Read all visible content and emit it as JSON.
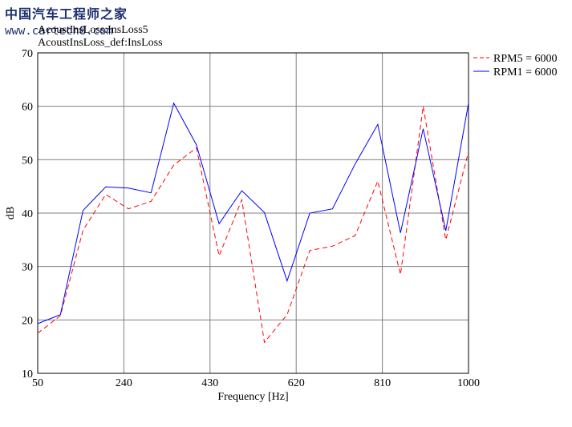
{
  "watermark": {
    "title": "中国汽车工程师之家",
    "url": "www.cartech8.com"
  },
  "header": {
    "line1": "AcoustInsLoss:InsLoss5",
    "line2": "AcoustInsLoss_def:InsLoss"
  },
  "chart_data": {
    "type": "line",
    "title": "",
    "xlabel": "Frequency [Hz]",
    "ylabel": "dB",
    "xlim": [
      50,
      1000
    ],
    "ylim": [
      10,
      70
    ],
    "x_ticks": [
      50,
      240,
      430,
      620,
      810,
      1000
    ],
    "y_ticks": [
      10,
      20,
      30,
      40,
      50,
      60,
      70
    ],
    "grid": true,
    "legend_position": "right, outside plot top",
    "x": [
      50,
      100,
      150,
      200,
      250,
      300,
      350,
      400,
      450,
      500,
      550,
      600,
      650,
      700,
      750,
      800,
      850,
      900,
      950,
      1000
    ],
    "series": [
      {
        "name": "RPM5 = 6000",
        "color": "#ff0000",
        "dash": "dashed",
        "values": [
          17.5,
          20.8,
          36.8,
          43.5,
          40.8,
          42.2,
          49.0,
          52.2,
          32.0,
          42.5,
          15.8,
          21.0,
          33.0,
          33.8,
          35.8,
          46.0,
          28.5,
          60.0,
          35.0,
          51.5
        ]
      },
      {
        "name": "RPM1 = 6000",
        "color": "#0000ff",
        "dash": "solid",
        "values": [
          19.3,
          21.0,
          40.5,
          44.9,
          44.7,
          43.8,
          60.6,
          52.8,
          38.0,
          44.2,
          40.1,
          27.3,
          40.0,
          40.8,
          49.2,
          56.6,
          36.3,
          55.8,
          36.7,
          60.6
        ]
      }
    ]
  }
}
